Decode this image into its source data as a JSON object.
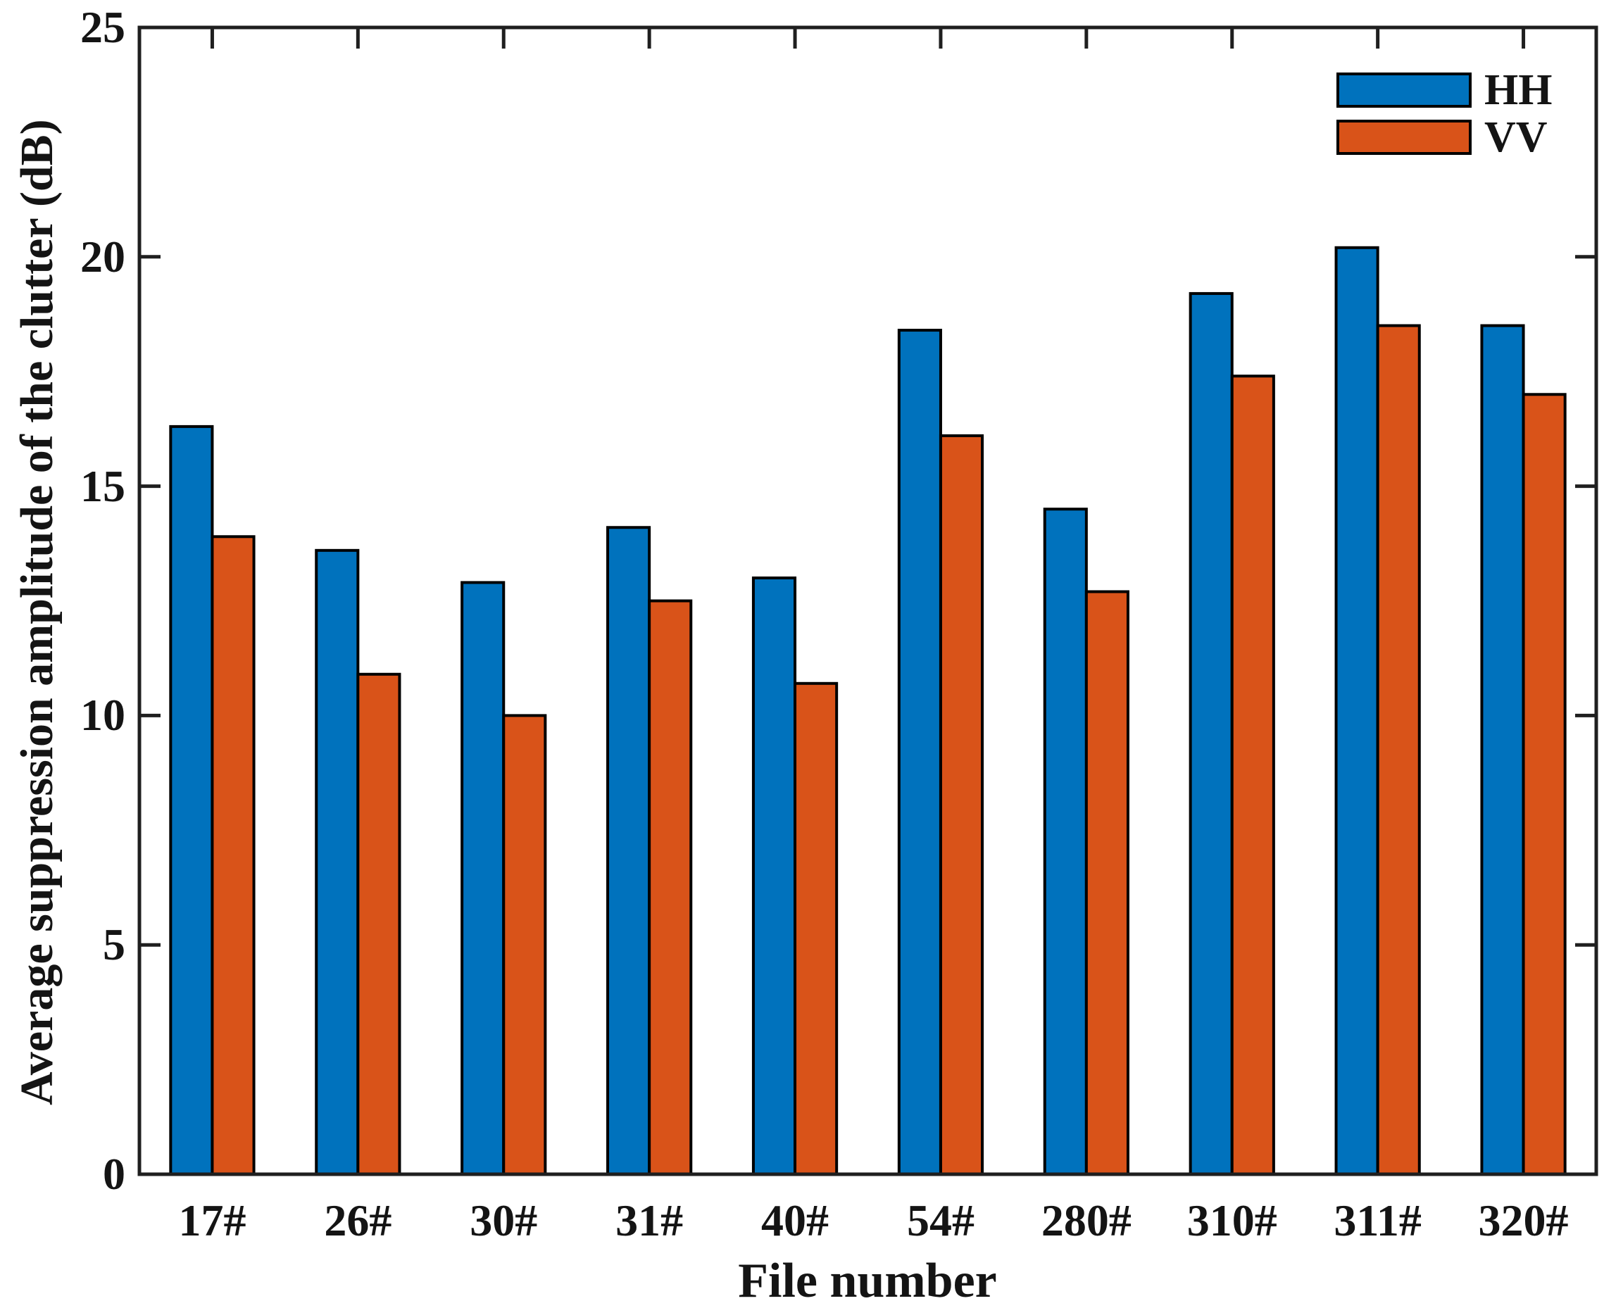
{
  "chart_data": {
    "type": "bar",
    "title": "",
    "categories": [
      "17#",
      "26#",
      "30#",
      "31#",
      "40#",
      "54#",
      "280#",
      "310#",
      "311#",
      "320#"
    ],
    "series": [
      {
        "name": "HH",
        "color": "#0072BD",
        "values": [
          16.3,
          13.6,
          12.9,
          14.1,
          13.0,
          18.4,
          14.5,
          19.2,
          20.2,
          18.5
        ]
      },
      {
        "name": "VV",
        "color": "#D95319",
        "values": [
          13.9,
          10.9,
          10.0,
          12.5,
          10.7,
          16.1,
          12.7,
          17.4,
          18.5,
          17.0
        ]
      }
    ],
    "xlabel": "File number",
    "ylabel": "Average suppression amplitude of the clutter (dB)",
    "ylim": [
      0,
      25
    ],
    "yticks": [
      "0",
      "5",
      "10",
      "15",
      "20",
      "25"
    ],
    "grid": false,
    "legend_position": "top-right-inside",
    "legend_box": false,
    "bar_edge_color": "#000000",
    "axis_color": "#1f1f1f",
    "background": "#ffffff"
  }
}
